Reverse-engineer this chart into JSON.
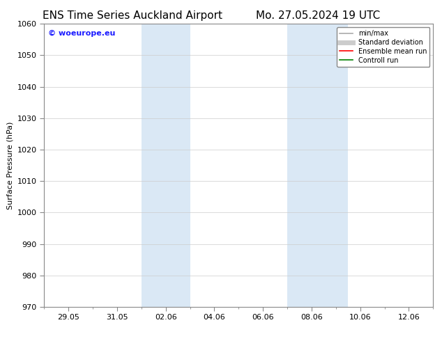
{
  "title_left": "ENS Time Series Auckland Airport",
  "title_right": "Mo. 27.05.2024 19 UTC",
  "ylabel": "Surface Pressure (hPa)",
  "ylim": [
    970,
    1060
  ],
  "yticks": [
    970,
    980,
    990,
    1000,
    1010,
    1020,
    1030,
    1040,
    1050,
    1060
  ],
  "xtick_labels": [
    "29.05",
    "31.05",
    "02.06",
    "04.06",
    "06.06",
    "08.06",
    "10.06",
    "12.06"
  ],
  "xtick_positions": [
    1,
    3,
    5,
    7,
    9,
    11,
    13,
    15
  ],
  "xlim": [
    0,
    16
  ],
  "shaded_bands": [
    {
      "x_start": 4.0,
      "x_end": 6.0,
      "color": "#dae8f5"
    },
    {
      "x_start": 10.0,
      "x_end": 12.5,
      "color": "#dae8f5"
    }
  ],
  "watermark_text": "© woeurope.eu",
  "watermark_color": "#1a1aff",
  "legend_items": [
    {
      "label": "min/max",
      "color": "#aaaaaa",
      "lw": 1.2,
      "style": "solid"
    },
    {
      "label": "Standard deviation",
      "color": "#cccccc",
      "lw": 5,
      "style": "solid"
    },
    {
      "label": "Ensemble mean run",
      "color": "#ff0000",
      "lw": 1.2,
      "style": "solid"
    },
    {
      "label": "Controll run",
      "color": "#008000",
      "lw": 1.2,
      "style": "solid"
    }
  ],
  "background_color": "#ffffff",
  "grid_color": "#cccccc",
  "title_fontsize": 11,
  "axis_label_fontsize": 8,
  "tick_fontsize": 8,
  "legend_fontsize": 7,
  "watermark_fontsize": 8
}
